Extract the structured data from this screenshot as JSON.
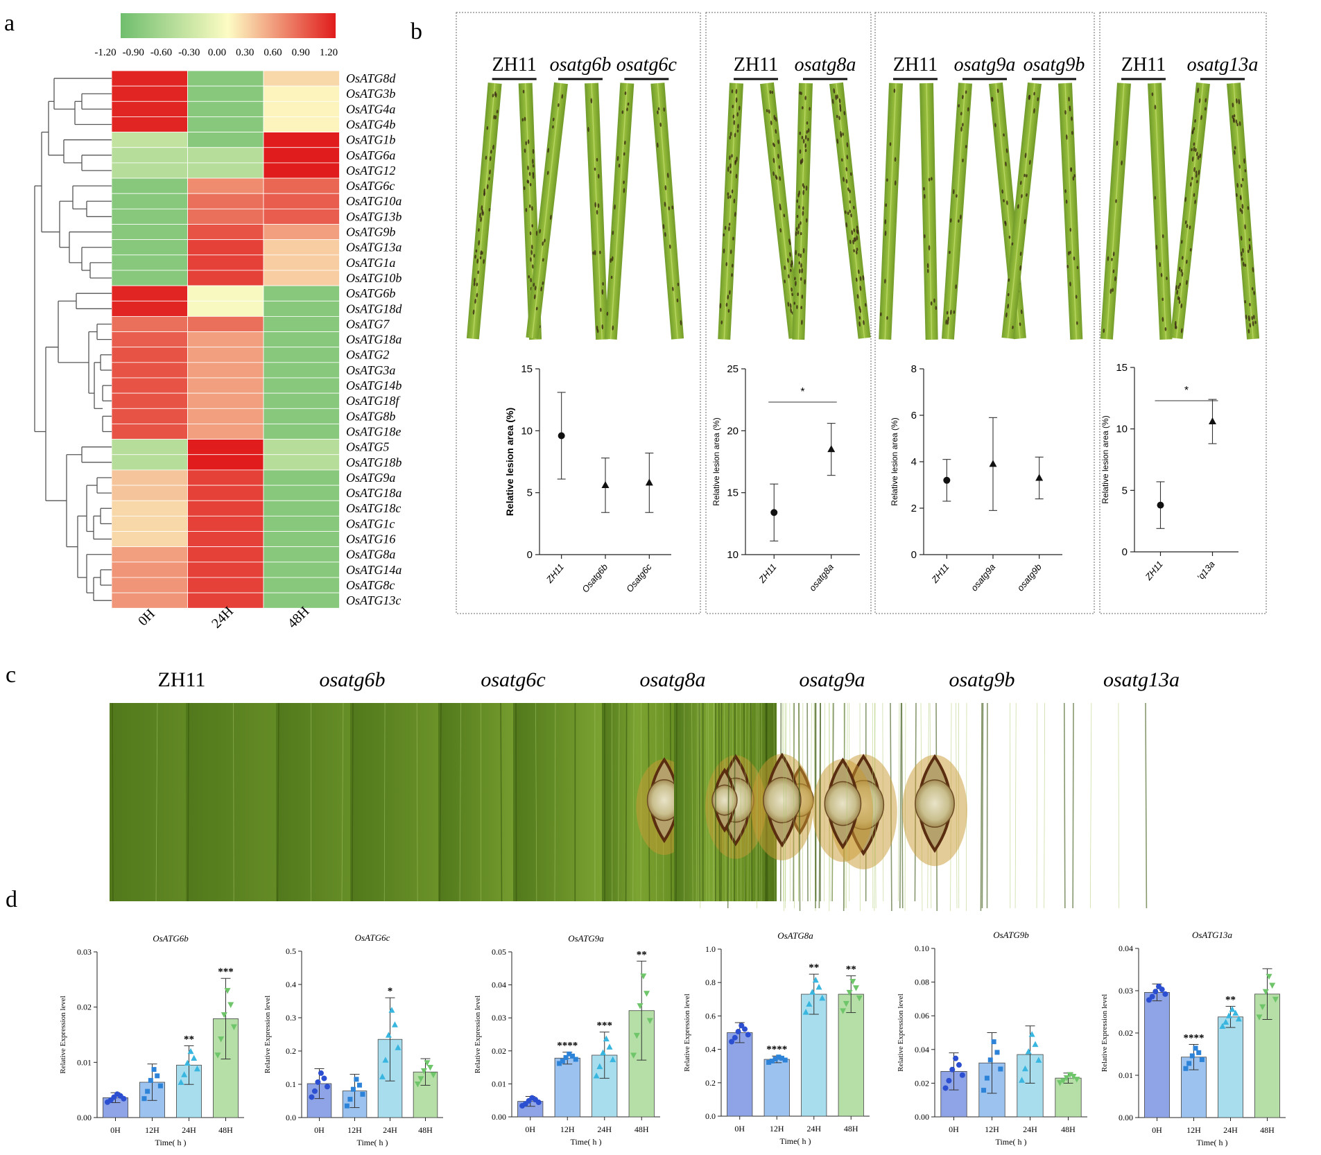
{
  "panels": {
    "a": "a",
    "b": "b",
    "c": "c",
    "d": "d"
  },
  "heatmap": {
    "legend_ticks": [
      "-1.20",
      "-0.90",
      "-0.60",
      "-0.30",
      "0.00",
      "0.30",
      "0.60",
      "0.90",
      "1.20"
    ],
    "columns": [
      "0H",
      "24H",
      "48H"
    ],
    "genes": [
      "OsATG8d",
      "OsATG3b",
      "OsATG4a",
      "OsATG4b",
      "OsATG1b",
      "OsATG6a",
      "OsATG12",
      "OsATG6c",
      "OsATG10a",
      "OsATG13b",
      "OsATG9b",
      "OsATG13a",
      "OsATG1a",
      "OsATG10b",
      "OsATG6b",
      "OsATG18d",
      "OsATG7",
      "OsATG18a",
      "OsATG2",
      "OsATG3a",
      "OsATG14b",
      "OsATG18f",
      "OsATG8b",
      "OsATG18e",
      "OsATG5",
      "OsATG18b",
      "OsATG9a",
      "OsATG18a",
      "OsATG18c",
      "OsATG1c",
      "OsATG16",
      "OsATG8a",
      "OsATG14a",
      "OsATG8c",
      "OsATG13c"
    ],
    "values": [
      [
        1.15,
        -1.0,
        0.2
      ],
      [
        1.15,
        -1.0,
        0.05
      ],
      [
        1.15,
        -1.0,
        0.05
      ],
      [
        1.15,
        -1.0,
        0.05
      ],
      [
        -0.5,
        -1.0,
        1.2
      ],
      [
        -0.6,
        -0.6,
        1.2
      ],
      [
        -0.6,
        -0.6,
        1.2
      ],
      [
        -1.0,
        0.6,
        0.8
      ],
      [
        -1.0,
        0.75,
        0.85
      ],
      [
        -1.0,
        0.75,
        0.85
      ],
      [
        -1.0,
        0.9,
        0.5
      ],
      [
        -1.0,
        1.0,
        0.25
      ],
      [
        -1.0,
        1.0,
        0.25
      ],
      [
        -1.0,
        1.0,
        0.25
      ],
      [
        1.15,
        -0.05,
        -1.0
      ],
      [
        1.15,
        -0.05,
        -1.0
      ],
      [
        0.75,
        0.75,
        -1.0
      ],
      [
        0.85,
        0.5,
        -1.0
      ],
      [
        0.9,
        0.5,
        -1.0
      ],
      [
        0.9,
        0.5,
        -1.0
      ],
      [
        0.9,
        0.5,
        -1.0
      ],
      [
        0.9,
        0.5,
        -1.0
      ],
      [
        0.9,
        0.5,
        -1.0
      ],
      [
        0.9,
        0.5,
        -1.0
      ],
      [
        -0.6,
        1.2,
        -0.6
      ],
      [
        -0.6,
        1.2,
        -0.6
      ],
      [
        0.3,
        1.0,
        -1.0
      ],
      [
        0.3,
        1.0,
        -1.0
      ],
      [
        0.2,
        1.0,
        -1.0
      ],
      [
        0.2,
        1.0,
        -1.0
      ],
      [
        0.2,
        1.0,
        -1.0
      ],
      [
        0.5,
        1.0,
        -1.0
      ],
      [
        0.55,
        1.0,
        -1.0
      ],
      [
        0.55,
        1.0,
        -1.0
      ],
      [
        0.55,
        1.0,
        -1.0
      ]
    ]
  },
  "lesion_panels": [
    {
      "groups": [
        "ZH11",
        "osatg6b",
        "osatg6c"
      ],
      "leaves": [
        2,
        2,
        2
      ],
      "spots": [
        0.7,
        0.3,
        0.3
      ],
      "plot": {
        "ylabel": "Relative lesion area (%)",
        "ylabel_bold": true,
        "ylim": [
          0,
          15
        ],
        "yticks": [
          "0",
          "5",
          "10",
          "15"
        ],
        "xticklabels": [
          "ZH11",
          "Osatg6b",
          "Osatg6c"
        ],
        "mean": [
          9.6,
          5.6,
          5.8
        ],
        "err": [
          3.5,
          2.2,
          2.4
        ],
        "markers": [
          "circle",
          "triangle",
          "triangle"
        ],
        "sig": []
      }
    },
    {
      "groups": [
        "ZH11",
        "osatg8a"
      ],
      "leaves": [
        2,
        2
      ],
      "spots": [
        0.8,
        1.0
      ],
      "plot": {
        "ylabel": "Relative lesion area (%)",
        "ylabel_bold": false,
        "ylim": [
          10,
          25
        ],
        "yticks": [
          "10",
          "15",
          "20",
          "25"
        ],
        "xticklabels": [
          "ZH11",
          "osatg8a"
        ],
        "mean": [
          13.4,
          18.5
        ],
        "err": [
          2.3,
          2.1
        ],
        "markers": [
          "circle",
          "triangle"
        ],
        "sig": [
          "*"
        ]
      }
    },
    {
      "groups": [
        "ZH11",
        "osatg9a",
        "osatg9b"
      ],
      "leaves": [
        2,
        2,
        2
      ],
      "spots": [
        0.2,
        0.4,
        0.4
      ],
      "plot": {
        "ylabel": "Relative lesion area (%)",
        "ylabel_bold": false,
        "ylim": [
          0,
          8
        ],
        "yticks": [
          "0",
          "2",
          "4",
          "6",
          "8"
        ],
        "xticklabels": [
          "ZH11",
          "osatg9a",
          "osatg9b"
        ],
        "mean": [
          3.2,
          3.9,
          3.3
        ],
        "err": [
          0.9,
          2.0,
          0.9
        ],
        "markers": [
          "circle",
          "triangle",
          "triangle"
        ],
        "sig": []
      }
    },
    {
      "groups": [
        "ZH11",
        "osatg13a"
      ],
      "leaves": [
        2,
        2
      ],
      "spots": [
        0.2,
        0.9
      ],
      "plot": {
        "ylabel": "Relative lesion area (%)",
        "ylabel_bold": false,
        "ylim": [
          0,
          15
        ],
        "yticks": [
          "0",
          "5",
          "10",
          "15"
        ],
        "xticklabels": [
          "ZH11",
          "'q13a"
        ],
        "mean": [
          3.8,
          10.6
        ],
        "err": [
          1.9,
          1.8
        ],
        "markers": [
          "circle",
          "triangle"
        ],
        "sig": [
          "*"
        ]
      }
    }
  ],
  "leaf_images": {
    "genotypes": [
      "ZH11",
      "osatg6b",
      "osatg6c",
      "osatg8a",
      "osatg9a",
      "osatg9b",
      "osatg13a"
    ],
    "lesion_size": [
      1.0,
      1.05,
      1.15,
      1.35,
      1.0,
      1.5,
      1.45
    ]
  },
  "chart_data": [
    {
      "type": "bar",
      "title": "OsATG6b",
      "categories": [
        "0H",
        "12H",
        "24H",
        "48H"
      ],
      "values": [
        0.0036,
        0.0064,
        0.0095,
        0.0179
      ],
      "errors": [
        0.0009,
        0.0033,
        0.0035,
        0.0073
      ],
      "significance": [
        "",
        "",
        "**",
        "***"
      ],
      "ylim": [
        0,
        0.03
      ],
      "yticks": [
        "0.00",
        "0.01",
        "0.02",
        "0.03"
      ],
      "xlabel": "Time( h )",
      "ylabel": "Relative Expression level"
    },
    {
      "type": "bar",
      "title": "OsATG6c",
      "categories": [
        "0H",
        "12H",
        "24H",
        "48H"
      ],
      "values": [
        0.102,
        0.08,
        0.235,
        0.137
      ],
      "errors": [
        0.045,
        0.05,
        0.125,
        0.04
      ],
      "significance": [
        "",
        "",
        "*",
        ""
      ],
      "ylim": [
        0,
        0.5
      ],
      "yticks": [
        "0.0",
        "0.1",
        "0.2",
        "0.3",
        "0.4",
        "0.5"
      ],
      "xlabel": "Time( h )",
      "ylabel": "Relative Expression level"
    },
    {
      "type": "bar",
      "title": "OsATG9a",
      "categories": [
        "0H",
        "12H",
        "24H",
        "48H"
      ],
      "values": [
        0.0047,
        0.0178,
        0.0187,
        0.0322
      ],
      "errors": [
        0.0015,
        0.0018,
        0.007,
        0.015
      ],
      "significance": [
        "",
        "****",
        "***",
        "**"
      ],
      "ylim": [
        0,
        0.05
      ],
      "yticks": [
        "0.00",
        "0.01",
        "0.02",
        "0.03",
        "0.04",
        "0.05"
      ],
      "xlabel": "Time( h )",
      "ylabel": "Relative Expression level"
    },
    {
      "type": "bar",
      "title": "OsATG8a",
      "categories": [
        "0H",
        "12H",
        "24H",
        "48H"
      ],
      "values": [
        0.5,
        0.34,
        0.73,
        0.73
      ],
      "errors": [
        0.06,
        0.02,
        0.12,
        0.11
      ],
      "significance": [
        "",
        "****",
        "**",
        "**"
      ],
      "ylim": [
        0,
        1.0
      ],
      "yticks": [
        "0.0",
        "0.2",
        "0.4",
        "0.6",
        "0.8",
        "1.0"
      ],
      "xlabel": "Time( h )",
      "ylabel": "Relative Expression level"
    },
    {
      "type": "bar",
      "title": "OsATG9b",
      "categories": [
        "0H",
        "12H",
        "24H",
        "48H"
      ],
      "values": [
        0.027,
        0.032,
        0.037,
        0.023
      ],
      "errors": [
        0.011,
        0.018,
        0.017,
        0.003
      ],
      "significance": [
        "",
        "",
        "",
        ""
      ],
      "ylim": [
        0,
        0.1
      ],
      "yticks": [
        "0.00",
        "0.02",
        "0.04",
        "0.06",
        "0.08",
        "0.10"
      ],
      "xlabel": "Time( h )",
      "ylabel": "Relative Expression level"
    },
    {
      "type": "bar",
      "title": "OsATG13a",
      "categories": [
        "0H",
        "12H",
        "24H",
        "48H"
      ],
      "values": [
        0.0296,
        0.0143,
        0.0238,
        0.0292
      ],
      "errors": [
        0.002,
        0.003,
        0.0025,
        0.006
      ],
      "significance": [
        "",
        "****",
        "**",
        ""
      ],
      "ylim": [
        0,
        0.04
      ],
      "yticks": [
        "0.00",
        "0.01",
        "0.02",
        "0.03",
        "0.04"
      ],
      "xlabel": "Time( h )",
      "ylabel": "Relative Expression level"
    }
  ],
  "bar_colors": [
    "#8ea4e6",
    "#9cc3ef",
    "#a8ddee",
    "#b5dfa6"
  ],
  "dot_colors": [
    "#2b4fd0",
    "#2d83d8",
    "#38b6df",
    "#6ec56a"
  ]
}
